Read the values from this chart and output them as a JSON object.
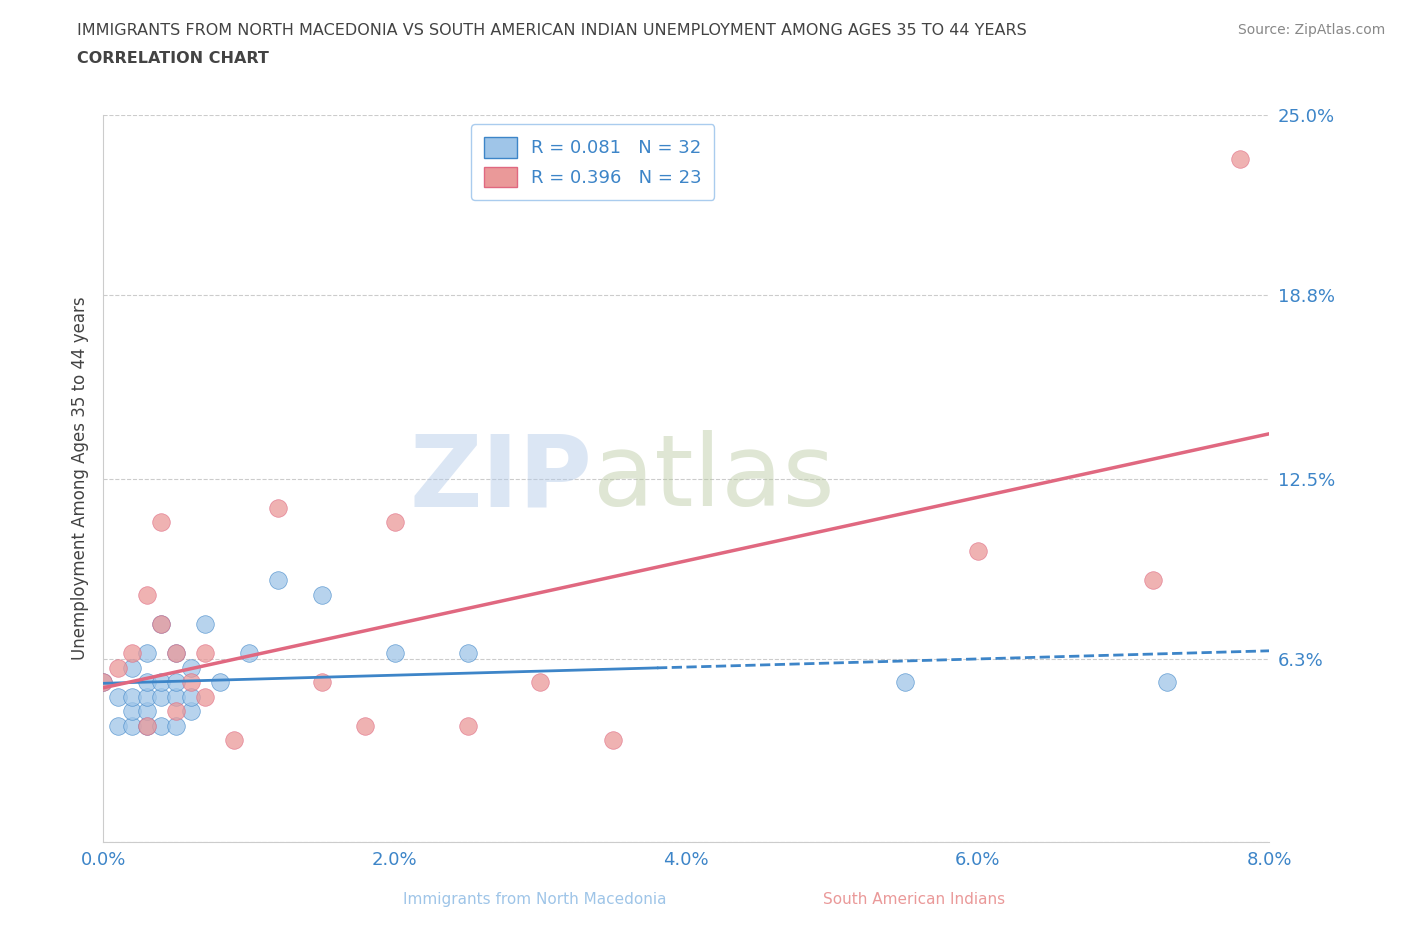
{
  "title_line1": "IMMIGRANTS FROM NORTH MACEDONIA VS SOUTH AMERICAN INDIAN UNEMPLOYMENT AMONG AGES 35 TO 44 YEARS",
  "title_line2": "CORRELATION CHART",
  "source": "Source: ZipAtlas.com",
  "ylabel": "Unemployment Among Ages 35 to 44 years",
  "xmin": 0.0,
  "xmax": 0.08,
  "ymin": 0.0,
  "ymax": 0.25,
  "yticks": [
    0.0,
    0.063,
    0.125,
    0.188,
    0.25
  ],
  "ytick_labels": [
    "",
    "6.3%",
    "12.5%",
    "18.8%",
    "25.0%"
  ],
  "xticks": [
    0.0,
    0.01,
    0.02,
    0.03,
    0.04,
    0.05,
    0.06,
    0.07,
    0.08
  ],
  "xtick_labels": [
    "0.0%",
    "",
    "2.0%",
    "",
    "4.0%",
    "",
    "6.0%",
    "",
    "8.0%"
  ],
  "blue_R": 0.081,
  "blue_N": 32,
  "pink_R": 0.396,
  "pink_N": 23,
  "blue_color": "#9fc5e8",
  "pink_color": "#ea9999",
  "blue_line_color": "#3d85c8",
  "pink_line_color": "#e06880",
  "axis_color": "#3d85c8",
  "grid_color": "#cccccc",
  "title_color": "#434343",
  "watermark_zip": "ZIP",
  "watermark_atlas": "atlas",
  "blue_scatter_x": [
    0.0,
    0.001,
    0.001,
    0.002,
    0.002,
    0.002,
    0.002,
    0.003,
    0.003,
    0.003,
    0.003,
    0.003,
    0.004,
    0.004,
    0.004,
    0.004,
    0.005,
    0.005,
    0.005,
    0.005,
    0.006,
    0.006,
    0.006,
    0.007,
    0.008,
    0.01,
    0.012,
    0.015,
    0.02,
    0.025,
    0.055,
    0.073
  ],
  "blue_scatter_y": [
    0.055,
    0.04,
    0.05,
    0.04,
    0.045,
    0.05,
    0.06,
    0.04,
    0.045,
    0.05,
    0.055,
    0.065,
    0.04,
    0.05,
    0.055,
    0.075,
    0.04,
    0.05,
    0.055,
    0.065,
    0.045,
    0.05,
    0.06,
    0.075,
    0.055,
    0.065,
    0.09,
    0.085,
    0.065,
    0.065,
    0.055,
    0.055
  ],
  "pink_scatter_x": [
    0.0,
    0.001,
    0.002,
    0.003,
    0.003,
    0.004,
    0.004,
    0.005,
    0.005,
    0.006,
    0.007,
    0.007,
    0.009,
    0.012,
    0.015,
    0.018,
    0.02,
    0.025,
    0.03,
    0.035,
    0.06,
    0.072,
    0.078
  ],
  "pink_scatter_y": [
    0.055,
    0.06,
    0.065,
    0.04,
    0.085,
    0.075,
    0.11,
    0.045,
    0.065,
    0.055,
    0.05,
    0.065,
    0.035,
    0.115,
    0.055,
    0.04,
    0.11,
    0.04,
    0.055,
    0.035,
    0.1,
    0.09,
    0.235
  ],
  "legend_label1": "R = 0.081   N = 32",
  "legend_label2": "R = 0.396   N = 23",
  "bottom_label1": "Immigrants from North Macedonia",
  "bottom_label2": "South American Indians"
}
